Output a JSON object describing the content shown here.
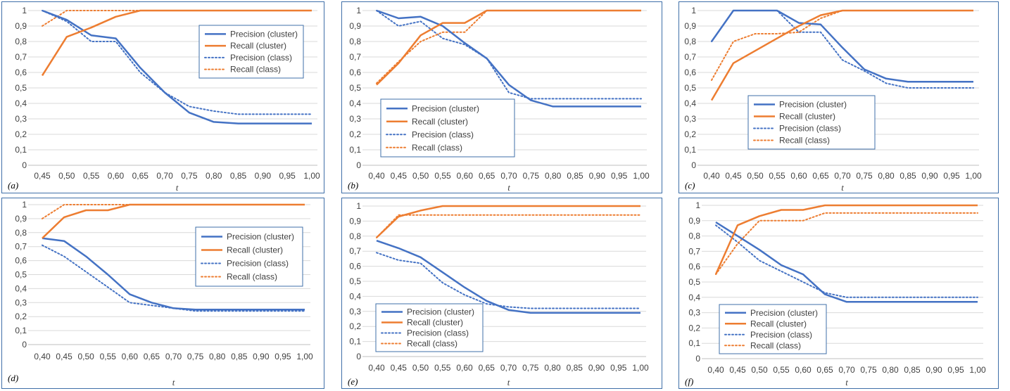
{
  "colors": {
    "precision": "#4472c4",
    "recall": "#ed7d31",
    "grid": "#d9d9d9",
    "border": "#3f6fa8"
  },
  "series_names": [
    "Precision (cluster)",
    "Recall (cluster)",
    "Precision (class)",
    "Recall (class)"
  ],
  "chart_data": [
    {
      "type": "line",
      "panel_label": "(a)",
      "xlabel": "t",
      "ylim": [
        0,
        1
      ],
      "grid": "horizontal",
      "legend_placement": "top-right",
      "x": [
        "0,45",
        "0,50",
        "0,55",
        "0,60",
        "0,65",
        "0,70",
        "0,75",
        "0,80",
        "0,85",
        "0,90",
        "0,95",
        "1,00"
      ],
      "yticks": [
        "0",
        "0,1",
        "0,2",
        "0,3",
        "0,4",
        "0,5",
        "0,6",
        "0,7",
        "0,8",
        "0,9",
        "1"
      ],
      "series": [
        {
          "name": "Precision (cluster)",
          "style": "solid",
          "color": "#4472c4",
          "values": [
            1.0,
            0.94,
            0.84,
            0.82,
            0.63,
            0.47,
            0.34,
            0.28,
            0.27,
            0.27,
            0.27,
            0.27
          ]
        },
        {
          "name": "Recall (cluster)",
          "style": "solid",
          "color": "#ed7d31",
          "values": [
            0.58,
            0.83,
            0.89,
            0.96,
            1.0,
            1.0,
            1.0,
            1.0,
            1.0,
            1.0,
            1.0,
            1.0
          ]
        },
        {
          "name": "Precision (class)",
          "style": "dotted",
          "color": "#4472c4",
          "values": [
            1.0,
            0.93,
            0.8,
            0.8,
            0.6,
            0.47,
            0.38,
            0.35,
            0.33,
            0.33,
            0.33,
            0.33
          ]
        },
        {
          "name": "Recall (class)",
          "style": "dotted",
          "color": "#ed7d31",
          "values": [
            0.9,
            1.0,
            1.0,
            1.0,
            1.0,
            1.0,
            1.0,
            1.0,
            1.0,
            1.0,
            1.0,
            1.0
          ]
        }
      ]
    },
    {
      "type": "line",
      "panel_label": "(b)",
      "xlabel": "t",
      "ylim": [
        0,
        1
      ],
      "grid": "horizontal",
      "legend_placement": "bottom-left",
      "x": [
        "0,40",
        "0,45",
        "0,50",
        "0,55",
        "0,60",
        "0,65",
        "0,70",
        "0,75",
        "0,80",
        "0,85",
        "0,90",
        "0,95",
        "1,00"
      ],
      "yticks": [
        "0",
        "0,1",
        "0,2",
        "0,3",
        "0,4",
        "0,5",
        "0,6",
        "0,7",
        "0,8",
        "0,9",
        "1"
      ],
      "series": [
        {
          "name": "Precision (cluster)",
          "style": "solid",
          "color": "#4472c4",
          "values": [
            1.0,
            0.95,
            0.96,
            0.9,
            0.79,
            0.69,
            0.52,
            0.42,
            0.38,
            0.38,
            0.38,
            0.38,
            0.38
          ]
        },
        {
          "name": "Recall (cluster)",
          "style": "solid",
          "color": "#ed7d31",
          "values": [
            0.52,
            0.66,
            0.84,
            0.92,
            0.92,
            1.0,
            1.0,
            1.0,
            1.0,
            1.0,
            1.0,
            1.0,
            1.0
          ]
        },
        {
          "name": "Precision (class)",
          "style": "dotted",
          "color": "#4472c4",
          "values": [
            1.0,
            0.9,
            0.93,
            0.82,
            0.78,
            0.69,
            0.47,
            0.43,
            0.43,
            0.43,
            0.43,
            0.43,
            0.43
          ]
        },
        {
          "name": "Recall (class)",
          "style": "dotted",
          "color": "#ed7d31",
          "values": [
            0.53,
            0.67,
            0.8,
            0.86,
            0.86,
            1.0,
            1.0,
            1.0,
            1.0,
            1.0,
            1.0,
            1.0,
            1.0
          ]
        }
      ]
    },
    {
      "type": "line",
      "panel_label": "(c)",
      "xlabel": "t",
      "ylim": [
        0,
        1
      ],
      "grid": "horizontal",
      "legend_placement": "bottom-center",
      "x": [
        "0,40",
        "0,45",
        "0,50",
        "0,55",
        "0,60",
        "0,65",
        "0,70",
        "0,75",
        "0,80",
        "0,85",
        "0,90",
        "0,95",
        "1,00"
      ],
      "yticks": [
        "0",
        "0,1",
        "0,2",
        "0,3",
        "0,4",
        "0,5",
        "0,6",
        "0,7",
        "0,8",
        "0,9",
        "1"
      ],
      "series": [
        {
          "name": "Precision (cluster)",
          "style": "solid",
          "color": "#4472c4",
          "values": [
            0.8,
            1.0,
            1.0,
            1.0,
            0.92,
            0.91,
            0.76,
            0.62,
            0.56,
            0.54,
            0.54,
            0.54,
            0.54
          ]
        },
        {
          "name": "Recall (cluster)",
          "style": "solid",
          "color": "#ed7d31",
          "values": [
            0.42,
            0.66,
            0.74,
            0.82,
            0.9,
            0.97,
            1.0,
            1.0,
            1.0,
            1.0,
            1.0,
            1.0,
            1.0
          ]
        },
        {
          "name": "Precision (class)",
          "style": "dotted",
          "color": "#4472c4",
          "values": [
            0.8,
            1.0,
            1.0,
            1.0,
            0.86,
            0.86,
            0.68,
            0.61,
            0.53,
            0.5,
            0.5,
            0.5,
            0.5
          ]
        },
        {
          "name": "Recall (class)",
          "style": "dotted",
          "color": "#ed7d31",
          "values": [
            0.55,
            0.8,
            0.85,
            0.85,
            0.86,
            0.95,
            1.0,
            1.0,
            1.0,
            1.0,
            1.0,
            1.0,
            1.0
          ]
        }
      ]
    },
    {
      "type": "line",
      "panel_label": "(d)",
      "xlabel": "t",
      "ylim": [
        0,
        1
      ],
      "grid": "horizontal",
      "legend_placement": "right",
      "x": [
        "0,40",
        "0,45",
        "0,50",
        "0,55",
        "0,60",
        "0,65",
        "0,70",
        "0,75",
        "0,80",
        "0,85",
        "0,90",
        "0,95",
        "1,00"
      ],
      "yticks": [
        "0",
        "0,1",
        "0,2",
        "0,3",
        "0,4",
        "0,5",
        "0,6",
        "0,7",
        "0,8",
        "0,9",
        "1"
      ],
      "series": [
        {
          "name": "Precision (cluster)",
          "style": "solid",
          "color": "#4472c4",
          "values": [
            0.76,
            0.74,
            0.63,
            0.5,
            0.36,
            0.3,
            0.26,
            0.25,
            0.25,
            0.25,
            0.25,
            0.25,
            0.25
          ]
        },
        {
          "name": "Recall (cluster)",
          "style": "solid",
          "color": "#ed7d31",
          "values": [
            0.76,
            0.91,
            0.96,
            0.96,
            1.0,
            1.0,
            1.0,
            1.0,
            1.0,
            1.0,
            1.0,
            1.0,
            1.0
          ]
        },
        {
          "name": "Precision (class)",
          "style": "dotted",
          "color": "#4472c4",
          "values": [
            0.71,
            0.63,
            0.52,
            0.41,
            0.3,
            0.28,
            0.26,
            0.24,
            0.24,
            0.24,
            0.24,
            0.24,
            0.24
          ]
        },
        {
          "name": "Recall (class)",
          "style": "dotted",
          "color": "#ed7d31",
          "values": [
            0.9,
            1.0,
            1.0,
            1.0,
            1.0,
            1.0,
            1.0,
            1.0,
            1.0,
            1.0,
            1.0,
            1.0,
            1.0
          ]
        }
      ]
    },
    {
      "type": "line",
      "panel_label": "(e)",
      "xlabel": "t",
      "ylim": [
        0,
        1
      ],
      "grid": "horizontal",
      "legend_placement": "bottom-left",
      "x": [
        "0,40",
        "0,45",
        "0,50",
        "0,55",
        "0,60",
        "0,65",
        "0,70",
        "0,75",
        "0,80",
        "0,85",
        "0,90",
        "0,95",
        "1,00"
      ],
      "yticks": [
        "0",
        "0,1",
        "0,2",
        "0,3",
        "0,4",
        "0,5",
        "0,6",
        "0,7",
        "0,8",
        "0,9",
        "1"
      ],
      "series": [
        {
          "name": "Precision (cluster)",
          "style": "solid",
          "color": "#4472c4",
          "values": [
            0.77,
            0.72,
            0.66,
            0.56,
            0.46,
            0.37,
            0.31,
            0.29,
            0.29,
            0.29,
            0.29,
            0.29,
            0.29
          ]
        },
        {
          "name": "Recall (cluster)",
          "style": "solid",
          "color": "#ed7d31",
          "values": [
            0.79,
            0.93,
            0.97,
            1.0,
            1.0,
            1.0,
            1.0,
            1.0,
            1.0,
            1.0,
            1.0,
            1.0,
            1.0
          ]
        },
        {
          "name": "Precision (class)",
          "style": "dotted",
          "color": "#4472c4",
          "values": [
            0.69,
            0.64,
            0.62,
            0.49,
            0.41,
            0.35,
            0.33,
            0.32,
            0.32,
            0.32,
            0.32,
            0.32,
            0.32
          ]
        },
        {
          "name": "Recall (class)",
          "style": "dotted",
          "color": "#ed7d31",
          "values": [
            0.79,
            0.94,
            0.94,
            0.94,
            0.94,
            0.94,
            0.94,
            0.94,
            0.94,
            0.94,
            0.94,
            0.94,
            0.94
          ]
        }
      ]
    },
    {
      "type": "line",
      "panel_label": "(f)",
      "xlabel": "t",
      "ylim": [
        0,
        1
      ],
      "grid": "horizontal",
      "legend_placement": "bottom-left",
      "x": [
        "0,40",
        "0,45",
        "0,50",
        "0,55",
        "0,60",
        "0,65",
        "0,70",
        "0,75",
        "0,80",
        "0,85",
        "0,90",
        "0,95",
        "1,00"
      ],
      "yticks": [
        "0",
        "0,1",
        "0,2",
        "0,3",
        "0,4",
        "0,5",
        "0,6",
        "0,7",
        "0,8",
        "0,9",
        "1"
      ],
      "series": [
        {
          "name": "Precision (cluster)",
          "style": "solid",
          "color": "#4472c4",
          "values": [
            0.89,
            0.8,
            0.71,
            0.61,
            0.55,
            0.42,
            0.37,
            0.37,
            0.37,
            0.37,
            0.37,
            0.37,
            0.37
          ]
        },
        {
          "name": "Recall (cluster)",
          "style": "solid",
          "color": "#ed7d31",
          "values": [
            0.55,
            0.87,
            0.93,
            0.97,
            0.97,
            1.0,
            1.0,
            1.0,
            1.0,
            1.0,
            1.0,
            1.0,
            1.0
          ]
        },
        {
          "name": "Precision (class)",
          "style": "dotted",
          "color": "#4472c4",
          "values": [
            0.87,
            0.76,
            0.64,
            0.57,
            0.5,
            0.43,
            0.4,
            0.4,
            0.4,
            0.4,
            0.4,
            0.4,
            0.4
          ]
        },
        {
          "name": "Recall (class)",
          "style": "dotted",
          "color": "#ed7d31",
          "values": [
            0.55,
            0.75,
            0.9,
            0.9,
            0.9,
            0.95,
            0.95,
            0.95,
            0.95,
            0.95,
            0.95,
            0.95,
            0.95
          ]
        }
      ]
    }
  ]
}
